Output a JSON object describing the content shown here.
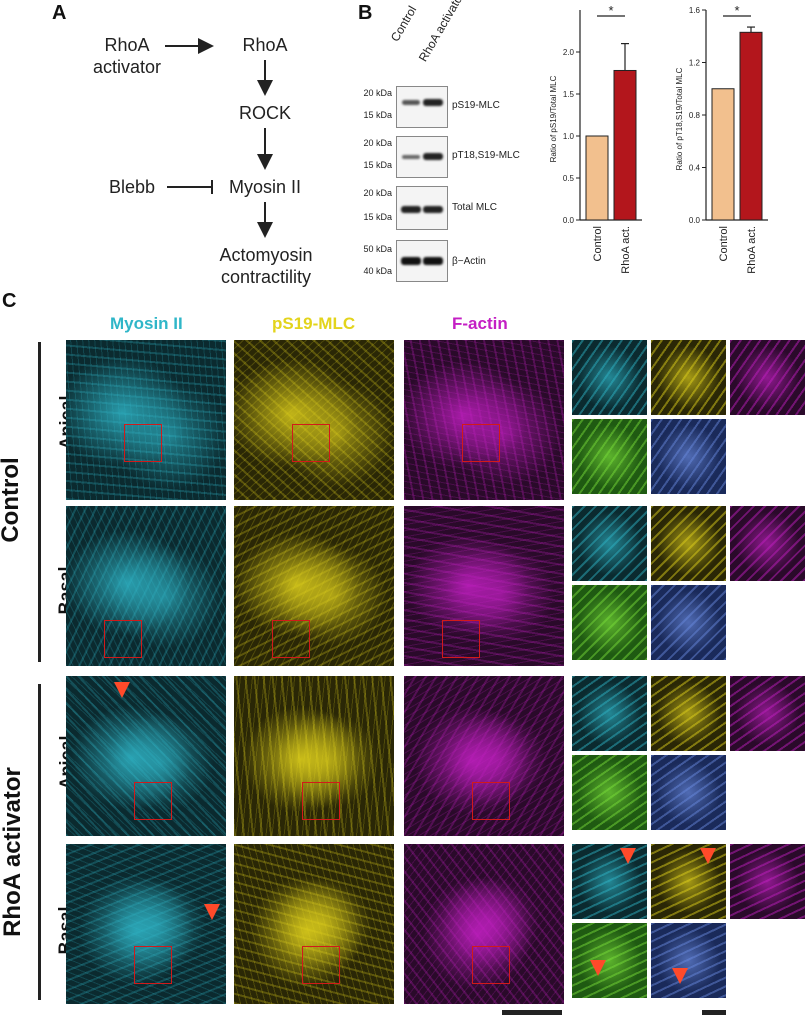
{
  "panels": {
    "A": "A",
    "B": "B",
    "C": "C"
  },
  "pathway": {
    "rhoa_activator": "RhoA\nactivator",
    "rhoa": "RhoA",
    "rock": "ROCK",
    "blebb": "Blebb",
    "myosin": "Myosin II",
    "actomyosin": "Actomyosin\ncontractility"
  },
  "blot": {
    "lanes": [
      "Control",
      "RhoA activator"
    ],
    "rows": [
      {
        "name": "pS19-MLC",
        "kda_top": "20 kDa",
        "kda_bottom": "15 kDa"
      },
      {
        "name": "pT18,S19-MLC",
        "kda_top": "20 kDa",
        "kda_bottom": "15 kDa"
      },
      {
        "name": "Total MLC",
        "kda_top": "20 kDa",
        "kda_bottom": "15 kDa"
      },
      {
        "name": "β−Actin",
        "kda_top": "50 kDa",
        "kda_bottom": "40 kDa"
      }
    ]
  },
  "chart_data": [
    {
      "type": "bar",
      "categories": [
        "Control",
        "RhoA act."
      ],
      "values": [
        1.0,
        1.78
      ],
      "errors": [
        0,
        0.32
      ],
      "ylabel": "Ratio of pS19/Total MLC",
      "ylim": [
        0,
        2.5
      ],
      "yticks": [
        "0.0",
        "0.5",
        "1.0",
        "1.5",
        "2.0"
      ],
      "significance": "*",
      "colors": [
        "#f2c08e",
        "#b3161c"
      ]
    },
    {
      "type": "bar",
      "categories": [
        "Control",
        "RhoA act."
      ],
      "values": [
        1.0,
        1.43
      ],
      "errors": [
        0,
        0.04
      ],
      "ylabel": "Ratio of pT18,S19/Total MLC",
      "ylim": [
        0,
        1.6
      ],
      "yticks": [
        "0.0",
        "0.4",
        "0.8",
        "1.2",
        "1.6"
      ],
      "significance": "*",
      "colors": [
        "#f2c08e",
        "#b3161c"
      ]
    }
  ],
  "microscopy": {
    "channels": [
      {
        "label": "Myosin II",
        "color": "#2fb6c8"
      },
      {
        "label": "pS19-MLC",
        "color": "#e3d41c"
      },
      {
        "label": "F-actin",
        "color": "#c41fc4"
      }
    ],
    "groups": [
      "Control",
      "RhoA activator"
    ],
    "rows": [
      "Apical",
      "Basal",
      "Apical",
      "Basal"
    ]
  }
}
